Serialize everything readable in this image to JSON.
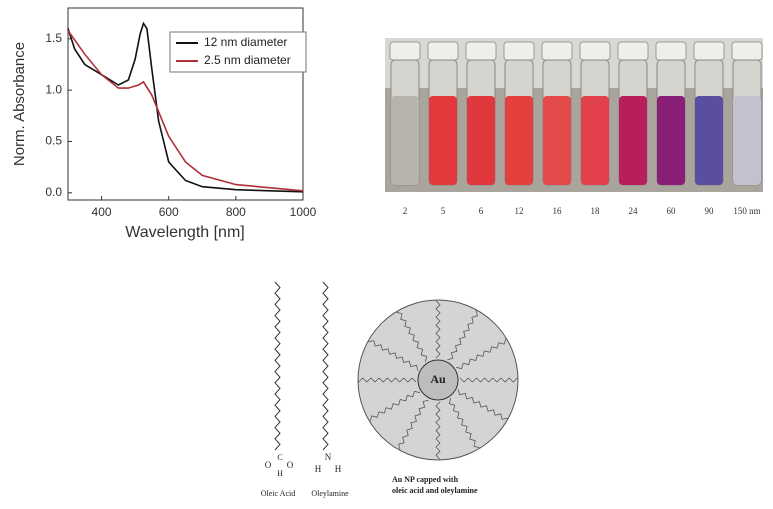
{
  "chart_data": {
    "type": "line",
    "xlabel": "Wavelength [nm]",
    "ylabel": "Norm. Absorbance",
    "xlim": [
      300,
      1000
    ],
    "xticks": [
      400,
      600,
      800,
      1000
    ],
    "ylim": [
      -0.07,
      1.8
    ],
    "yticks": [
      {
        "value": 0,
        "label": "0.0"
      },
      0.5,
      {
        "value": 1,
        "label": "1.0"
      },
      1.5
    ],
    "legend": "upper right",
    "series": [
      {
        "name": "12 nm diameter",
        "color": "#111111",
        "x": [
          300,
          320,
          350,
          400,
          450,
          480,
          500,
          515,
          525,
          535,
          550,
          570,
          600,
          650,
          700,
          800,
          1000
        ],
        "values": [
          1.6,
          1.4,
          1.25,
          1.15,
          1.05,
          1.1,
          1.3,
          1.55,
          1.65,
          1.6,
          1.2,
          0.7,
          0.3,
          0.12,
          0.06,
          0.03,
          0.01
        ]
      },
      {
        "name": "2.5 nm diameter",
        "color": "#b0303a",
        "x": [
          300,
          350,
          400,
          450,
          480,
          510,
          525,
          550,
          600,
          650,
          700,
          800,
          1000
        ],
        "values": [
          1.58,
          1.35,
          1.15,
          1.02,
          1.02,
          1.05,
          1.08,
          0.95,
          0.55,
          0.3,
          0.17,
          0.08,
          0.02
        ]
      }
    ]
  },
  "vials": [
    {
      "label": "2",
      "color": "#b8b4ac"
    },
    {
      "label": "5",
      "color": "#e23a3c"
    },
    {
      "label": "6",
      "color": "#e0383c"
    },
    {
      "label": "12",
      "color": "#e3403e"
    },
    {
      "label": "16",
      "color": "#e54a4a"
    },
    {
      "label": "18",
      "color": "#e2404a"
    },
    {
      "label": "24",
      "color": "#b81e5a"
    },
    {
      "label": "60",
      "color": "#8a1f78"
    },
    {
      "label": "90",
      "color": "#5a4ea0"
    },
    {
      "label": "150 nm",
      "color": "#c4c0d0"
    }
  ],
  "diagram": {
    "oleic_acid": "Oleic Acid",
    "oleylamine": "Oleylamine",
    "core": "Au",
    "caption": [
      "Au NP capped with",
      "oleic acid and oleylamine"
    ],
    "atoms": [
      "C",
      "O",
      "O",
      "H",
      "N",
      "H",
      "H"
    ]
  }
}
